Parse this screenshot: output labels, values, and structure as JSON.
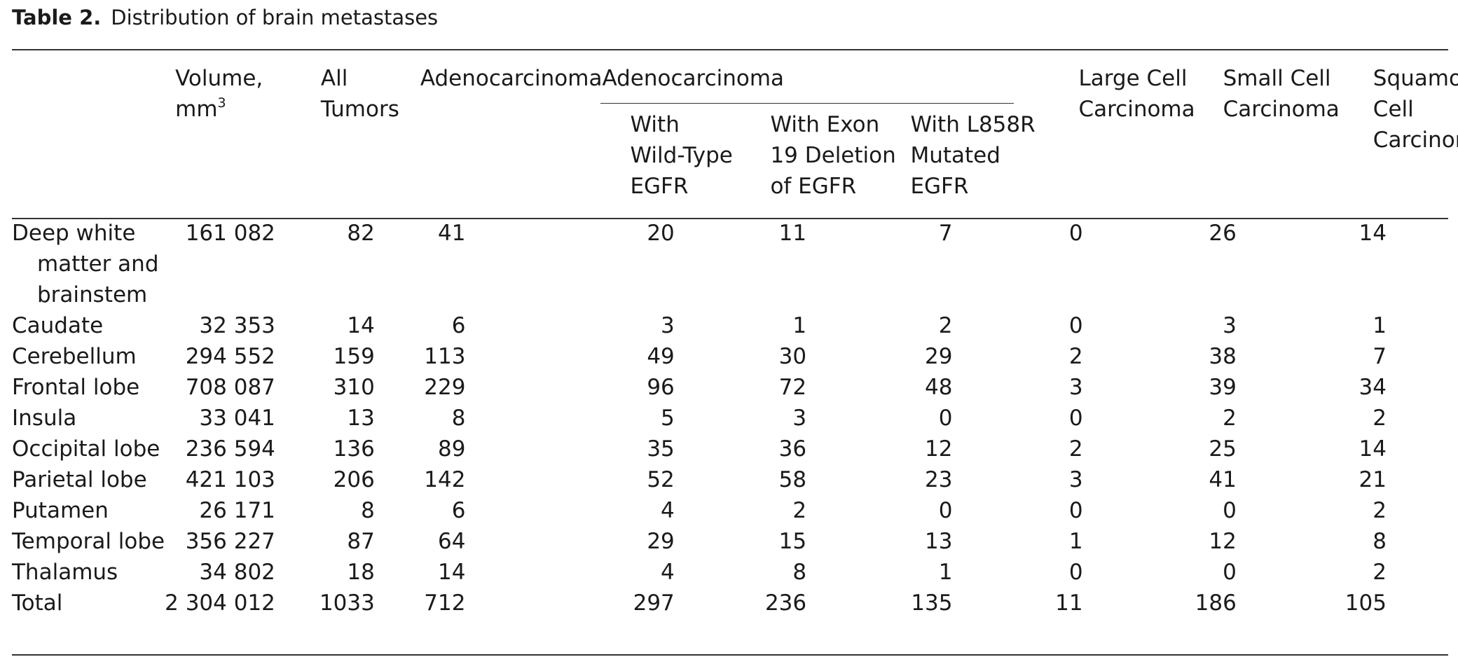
{
  "title": {
    "label": "Table 2.",
    "text": "Distribution of brain metastases"
  },
  "headers": {
    "volume_line1": "Volume,",
    "volume_line2": "mm",
    "volume_sup": "3",
    "all_tumors_line1": "All",
    "all_tumors_line2": "Tumors",
    "adenocarcinoma": "Adenocarcinoma",
    "adeno_group": "Adenocarcinoma",
    "wild_type": [
      "With",
      "Wild-Type",
      "EGFR"
    ],
    "exon19": [
      "With Exon",
      "19 Deletion",
      "of EGFR"
    ],
    "l858r": [
      "With L858R",
      "Mutated",
      "EGFR"
    ],
    "large_cell": [
      "Large Cell",
      "Carcinoma"
    ],
    "small_cell": [
      "Small Cell",
      "Carcinoma"
    ],
    "squamous": [
      "Squamous",
      "Cell",
      "Carcinoma"
    ]
  },
  "rows": [
    {
      "label": [
        "Deep white",
        "matter and",
        "brainstem"
      ],
      "volume": "161 082",
      "all": "82",
      "adeno": "41",
      "wild": "20",
      "exon": "11",
      "l858r": "7",
      "large": "0",
      "small": "26",
      "squamous": "14"
    },
    {
      "label": [
        "Caudate"
      ],
      "volume": "32 353",
      "all": "14",
      "adeno": "6",
      "wild": "3",
      "exon": "1",
      "l858r": "2",
      "large": "0",
      "small": "3",
      "squamous": "1"
    },
    {
      "label": [
        "Cerebellum"
      ],
      "volume": "294 552",
      "all": "159",
      "adeno": "113",
      "wild": "49",
      "exon": "30",
      "l858r": "29",
      "large": "2",
      "small": "38",
      "squamous": "7"
    },
    {
      "label": [
        "Frontal lobe"
      ],
      "volume": "708 087",
      "all": "310",
      "adeno": "229",
      "wild": "96",
      "exon": "72",
      "l858r": "48",
      "large": "3",
      "small": "39",
      "squamous": "34"
    },
    {
      "label": [
        "Insula"
      ],
      "volume": "33 041",
      "all": "13",
      "adeno": "8",
      "wild": "5",
      "exon": "3",
      "l858r": "0",
      "large": "0",
      "small": "2",
      "squamous": "2"
    },
    {
      "label": [
        "Occipital lobe"
      ],
      "volume": "236 594",
      "all": "136",
      "adeno": "89",
      "wild": "35",
      "exon": "36",
      "l858r": "12",
      "large": "2",
      "small": "25",
      "squamous": "14"
    },
    {
      "label": [
        "Parietal lobe"
      ],
      "volume": "421 103",
      "all": "206",
      "adeno": "142",
      "wild": "52",
      "exon": "58",
      "l858r": "23",
      "large": "3",
      "small": "41",
      "squamous": "21"
    },
    {
      "label": [
        "Putamen"
      ],
      "volume": "26 171",
      "all": "8",
      "adeno": "6",
      "wild": "4",
      "exon": "2",
      "l858r": "0",
      "large": "0",
      "small": "0",
      "squamous": "2"
    },
    {
      "label": [
        "Temporal lobe"
      ],
      "volume": "356 227",
      "all": "87",
      "adeno": "64",
      "wild": "29",
      "exon": "15",
      "l858r": "13",
      "large": "1",
      "small": "12",
      "squamous": "8"
    },
    {
      "label": [
        "Thalamus"
      ],
      "volume": "34 802",
      "all": "18",
      "adeno": "14",
      "wild": "4",
      "exon": "8",
      "l858r": "1",
      "large": "0",
      "small": "0",
      "squamous": "2"
    },
    {
      "label": [
        "Total"
      ],
      "volume": "2 304 012",
      "all": "1033",
      "adeno": "712",
      "wild": "297",
      "exon": "236",
      "l858r": "135",
      "large": "11",
      "small": "186",
      "squamous": "105"
    }
  ]
}
